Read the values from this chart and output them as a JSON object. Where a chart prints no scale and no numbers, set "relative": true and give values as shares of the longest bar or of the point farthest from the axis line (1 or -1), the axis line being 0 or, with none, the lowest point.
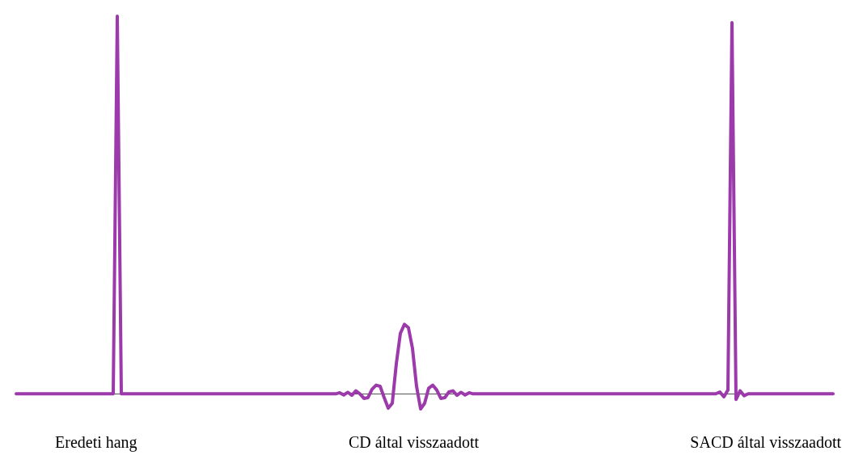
{
  "chart_data": {
    "type": "line",
    "relative": true,
    "marker": "none",
    "line_style": "solid",
    "grid": false,
    "legend": false,
    "categories": [
      null,
      null,
      null,
      null,
      null,
      null,
      null,
      null,
      null,
      null,
      null,
      null,
      null,
      null,
      null,
      null,
      null,
      null,
      null,
      null,
      null,
      null,
      null,
      null,
      null,
      null,
      null,
      null,
      null,
      null,
      null,
      null,
      null,
      null,
      null,
      null,
      null,
      null,
      null,
      null,
      null,
      null,
      null,
      null,
      null,
      null,
      null,
      null,
      null,
      null,
      null,
      null,
      null,
      null,
      null,
      null,
      null,
      null,
      null,
      null,
      null,
      null,
      null,
      null,
      null,
      null,
      null,
      null,
      null,
      null,
      null,
      null,
      null,
      null,
      null,
      null,
      null,
      null,
      null,
      null,
      null,
      null,
      null,
      null,
      null,
      null,
      null,
      null,
      null,
      null,
      null,
      null,
      null,
      null,
      null,
      null,
      null,
      null,
      null,
      null,
      null,
      null,
      null,
      null,
      null,
      null,
      null,
      null,
      null,
      null,
      null,
      null,
      null,
      null,
      null,
      null,
      null,
      null,
      null,
      null,
      null,
      null,
      null,
      null,
      null,
      null,
      null,
      null,
      null,
      null,
      null,
      null,
      null,
      null,
      null,
      null,
      null,
      null,
      null,
      null,
      null,
      null,
      null,
      null,
      null,
      null,
      null,
      null,
      null,
      null,
      null,
      null,
      null,
      null,
      null,
      null,
      null,
      null,
      null,
      null,
      null,
      null,
      null,
      null,
      null,
      null,
      null,
      null,
      null,
      null,
      null,
      null,
      null,
      null,
      null,
      null,
      null,
      null,
      null,
      null,
      null,
      null,
      null,
      null,
      null,
      null,
      null,
      null,
      null,
      null,
      null,
      null,
      null,
      null,
      null,
      null,
      null,
      null,
      null,
      null,
      null,
      null,
      null
    ],
    "series": [
      {
        "color": "#9c3aab",
        "values": [
          0,
          0,
          0,
          0,
          0,
          0,
          0,
          0,
          0,
          0,
          0,
          0,
          0,
          0,
          0,
          0,
          0,
          0,
          0,
          0,
          0,
          0,
          0,
          0,
          0,
          1,
          0,
          0,
          0,
          0,
          0,
          0,
          0,
          0,
          0,
          0,
          0,
          0,
          0,
          0,
          0,
          0,
          0,
          0,
          0,
          0,
          0,
          0,
          0,
          0,
          0,
          0,
          0,
          0,
          0,
          0,
          0,
          0,
          0,
          0,
          0,
          0,
          0,
          0,
          0,
          0,
          0,
          0,
          0,
          0,
          0,
          0,
          0,
          0,
          0,
          0,
          0,
          0,
          0,
          0,
          0.003,
          -0.003,
          0.004,
          -0.004,
          0.008,
          0,
          -0.012,
          -0.01,
          0.012,
          0.023,
          0.02,
          -0.01,
          -0.038,
          -0.025,
          0.08,
          0.16,
          0.184,
          0.175,
          0.12,
          0.02,
          -0.04,
          -0.025,
          0.015,
          0.023,
          0.01,
          -0.012,
          -0.01,
          0.005,
          0.008,
          -0.004,
          0.004,
          -0.003,
          0.003,
          0,
          0,
          0,
          0,
          0,
          0,
          0,
          0,
          0,
          0,
          0,
          0,
          0,
          0,
          0,
          0,
          0,
          0,
          0,
          0,
          0,
          0,
          0,
          0,
          0,
          0,
          0,
          0,
          0,
          0,
          0,
          0,
          0,
          0,
          0,
          0,
          0,
          0,
          0,
          0,
          0,
          0,
          0,
          0,
          0,
          0,
          0,
          0,
          0,
          0,
          0,
          0,
          0,
          0,
          0,
          0,
          0,
          0,
          0,
          0,
          0,
          0.005,
          -0.008,
          0.01,
          0.983,
          -0.015,
          0.008,
          -0.005,
          0,
          0,
          0,
          0,
          0,
          0,
          0,
          0,
          0,
          0,
          0,
          0,
          0,
          0,
          0,
          0,
          0,
          0,
          0,
          0,
          0,
          0
        ]
      }
    ],
    "annotations": [
      "Eredeti hang",
      "CD által visszaadott",
      "SACD által visszaadott"
    ]
  }
}
